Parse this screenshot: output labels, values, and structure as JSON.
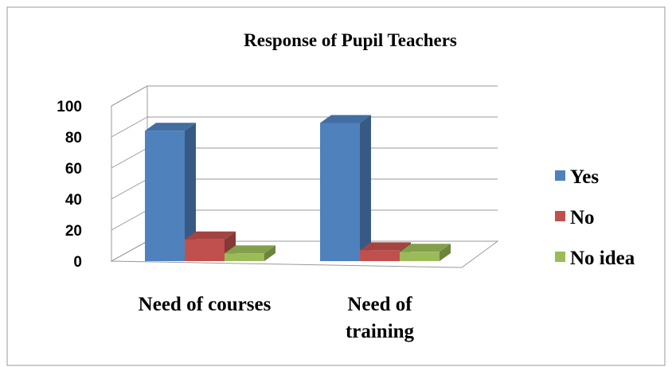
{
  "chart_data": {
    "type": "bar3d",
    "title": "Response of Pupil Teachers",
    "categories": [
      "Need of courses",
      "Need of training"
    ],
    "series": [
      {
        "name": "Yes",
        "color": "#4f81bd",
        "values": [
          84,
          89
        ]
      },
      {
        "name": "No",
        "color": "#c0504d",
        "values": [
          14,
          7
        ]
      },
      {
        "name": "No idea",
        "color": "#9bbb59",
        "values": [
          5,
          6
        ]
      }
    ],
    "ylim": [
      0,
      100
    ],
    "yticks": [
      0,
      20,
      40,
      60,
      80,
      100
    ],
    "grid": true,
    "legend": "right"
  }
}
